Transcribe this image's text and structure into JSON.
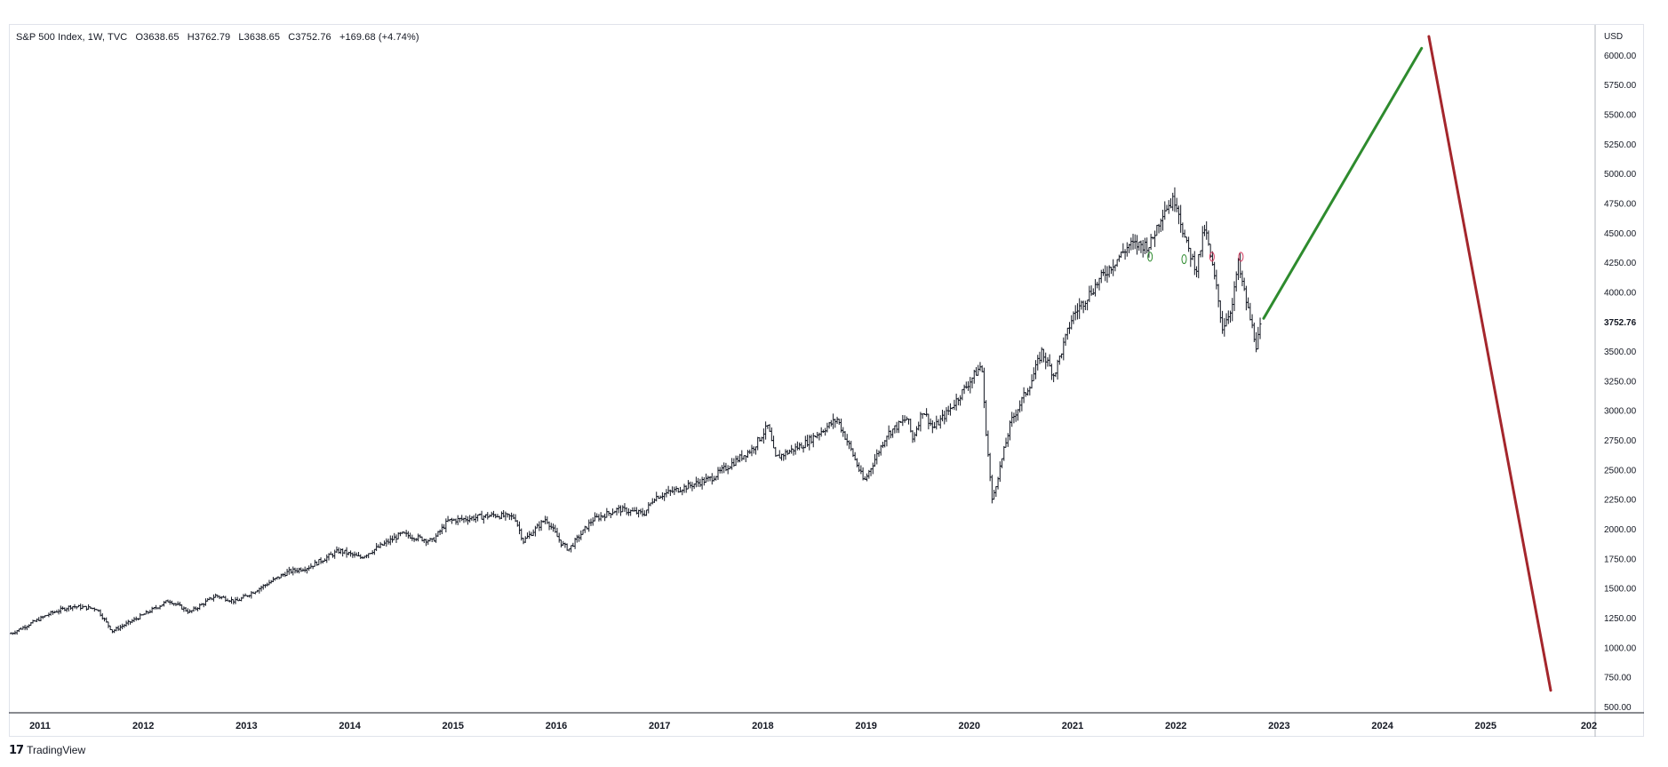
{
  "legend": {
    "symbol": "S&P 500 Index, 1W, TVC",
    "open": "O3638.65",
    "high": "H3762.79",
    "low": "L3638.65",
    "close": "C3752.76",
    "change": "+169.68 (+4.74%)"
  },
  "price_axis": {
    "currency": "USD",
    "last_price_label": "3752.76"
  },
  "footer": {
    "logo": "𝟭𝟳",
    "brand": "TradingView"
  },
  "colors": {
    "bars": "#131722",
    "up_projection": "#2e8b2e",
    "down_projection": "#a4262c",
    "grid_border": "#e0e3eb",
    "last_price_tag": "#131722"
  },
  "chart_data": {
    "type": "ohlc",
    "timeframe": "1W",
    "y_ticks": [
      "500.00",
      "750.00",
      "1000.00",
      "1250.00",
      "1500.00",
      "1750.00",
      "2000.00",
      "2250.00",
      "2500.00",
      "2750.00",
      "3000.00",
      "3250.00",
      "3500.00",
      "4000.00",
      "4250.00",
      "4500.00",
      "4750.00",
      "5000.00",
      "5250.00",
      "5500.00",
      "5750.00",
      "6000.00"
    ],
    "x_ticks": [
      "2011",
      "2012",
      "2013",
      "2014",
      "2015",
      "2016",
      "2017",
      "2018",
      "2019",
      "2020",
      "2021",
      "2022",
      "2023",
      "2024",
      "2025",
      "202"
    ],
    "ylim": [
      400,
      6300
    ],
    "xlim": [
      2010.7,
      2026.0
    ],
    "price_path": [
      [
        2010.72,
        1120
      ],
      [
        2011.1,
        1290
      ],
      [
        2011.3,
        1350
      ],
      [
        2011.55,
        1330
      ],
      [
        2011.7,
        1140
      ],
      [
        2011.9,
        1230
      ],
      [
        2012.25,
        1400
      ],
      [
        2012.45,
        1300
      ],
      [
        2012.7,
        1440
      ],
      [
        2012.9,
        1390
      ],
      [
        2013.4,
        1640
      ],
      [
        2013.6,
        1680
      ],
      [
        2013.9,
        1820
      ],
      [
        2014.1,
        1760
      ],
      [
        2014.5,
        1960
      ],
      [
        2014.8,
        1900
      ],
      [
        2014.95,
        2070
      ],
      [
        2015.4,
        2120
      ],
      [
        2015.6,
        2100
      ],
      [
        2015.68,
        1900
      ],
      [
        2015.9,
        2090
      ],
      [
        2016.05,
        1880
      ],
      [
        2016.12,
        1830
      ],
      [
        2016.35,
        2080
      ],
      [
        2016.6,
        2170
      ],
      [
        2016.85,
        2130
      ],
      [
        2016.95,
        2270
      ],
      [
        2017.5,
        2430
      ],
      [
        2017.9,
        2680
      ],
      [
        2018.05,
        2870
      ],
      [
        2018.12,
        2600
      ],
      [
        2018.4,
        2720
      ],
      [
        2018.72,
        2930
      ],
      [
        2018.85,
        2680
      ],
      [
        2018.98,
        2400
      ],
      [
        2019.2,
        2800
      ],
      [
        2019.4,
        2940
      ],
      [
        2019.45,
        2760
      ],
      [
        2019.55,
        3010
      ],
      [
        2019.65,
        2850
      ],
      [
        2019.8,
        3000
      ],
      [
        2020.12,
        3390
      ],
      [
        2020.15,
        2950
      ],
      [
        2020.22,
        2240
      ],
      [
        2020.4,
        2900
      ],
      [
        2020.6,
        3250
      ],
      [
        2020.7,
        3500
      ],
      [
        2020.82,
        3300
      ],
      [
        2021.0,
        3800
      ],
      [
        2021.3,
        4150
      ],
      [
        2021.55,
        4400
      ],
      [
        2021.75,
        4400
      ],
      [
        2021.88,
        4700
      ],
      [
        2022.0,
        4790
      ],
      [
        2022.1,
        4400
      ],
      [
        2022.2,
        4200
      ],
      [
        2022.28,
        4550
      ],
      [
        2022.4,
        4000
      ],
      [
        2022.45,
        3700
      ],
      [
        2022.55,
        3900
      ],
      [
        2022.6,
        4250
      ],
      [
        2022.7,
        3850
      ],
      [
        2022.78,
        3550
      ],
      [
        2022.83,
        3752.76
      ]
    ],
    "projections": [
      {
        "direction": "up",
        "from": [
          2022.85,
          3780
        ],
        "to": [
          2024.38,
          6060
        ]
      },
      {
        "direction": "down",
        "from": [
          2024.45,
          6160
        ],
        "to": [
          2025.63,
          640
        ]
      }
    ],
    "markers": [
      {
        "x": 2021.75,
        "y": 4300,
        "color": "green"
      },
      {
        "x": 2022.08,
        "y": 4280,
        "color": "green"
      },
      {
        "x": 2022.35,
        "y": 4300,
        "color": "red"
      },
      {
        "x": 2022.63,
        "y": 4300,
        "color": "red"
      }
    ],
    "grid": false
  }
}
